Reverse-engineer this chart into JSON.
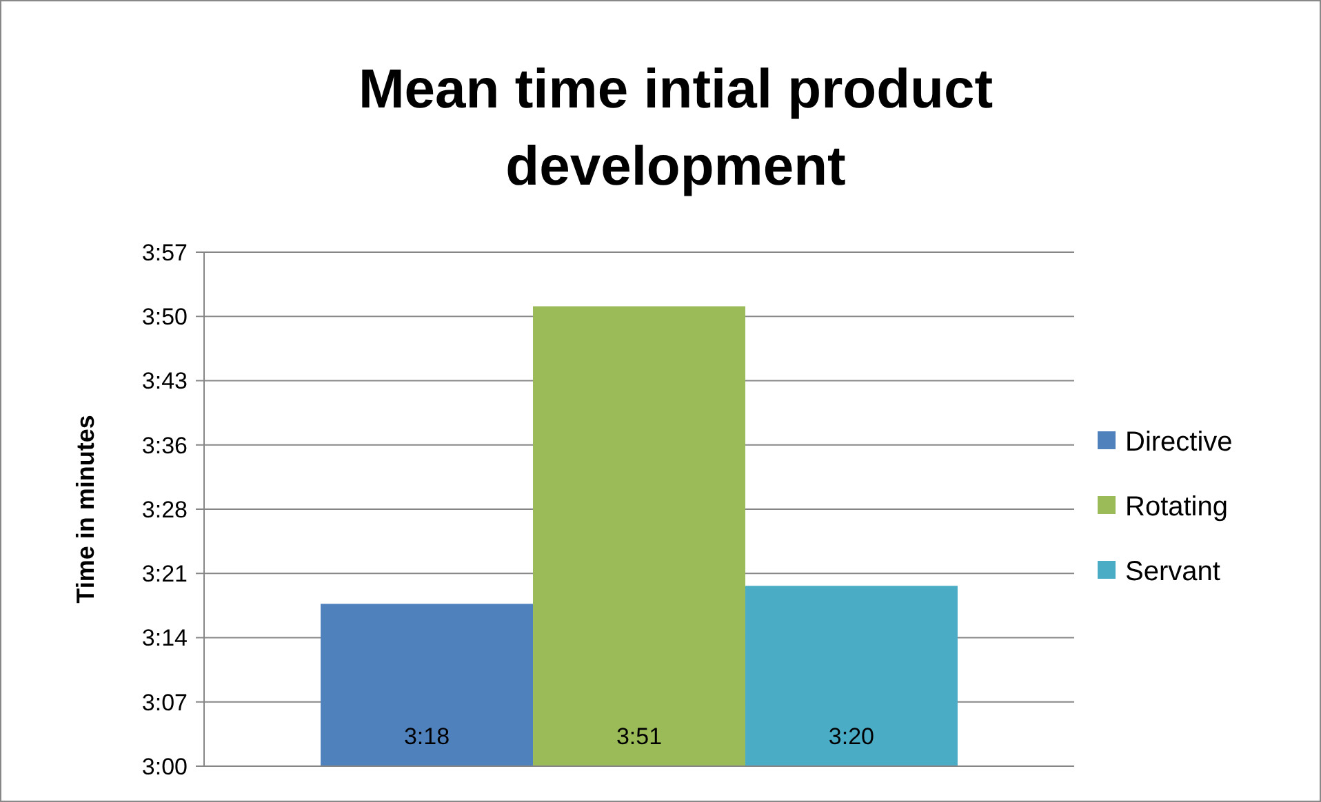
{
  "chart_data": {
    "type": "bar",
    "title": "Mean time intial product development",
    "ylabel": "Time in minutes",
    "categories": [
      null
    ],
    "series": [
      {
        "name": "Directive",
        "color": "#4f81bd",
        "values": [
          198
        ],
        "value_labels": [
          "3:18"
        ]
      },
      {
        "name": "Rotating",
        "color": "#9bbb59",
        "values": [
          231
        ],
        "value_labels": [
          "3:51"
        ]
      },
      {
        "name": "Servant",
        "color": "#4bacc6",
        "values": [
          200
        ],
        "value_labels": [
          "3:20"
        ]
      }
    ],
    "ylim": [
      180,
      237
    ],
    "yticks": [
      {
        "value": 180,
        "label": "3:00"
      },
      {
        "value": 187.125,
        "label": "3:07"
      },
      {
        "value": 194.25,
        "label": "3:14"
      },
      {
        "value": 201.375,
        "label": "3:21"
      },
      {
        "value": 208.5,
        "label": "3:28"
      },
      {
        "value": 215.625,
        "label": "3:36"
      },
      {
        "value": 222.75,
        "label": "3:43"
      },
      {
        "value": 229.875,
        "label": "3:50"
      },
      {
        "value": 237,
        "label": "3:57"
      }
    ],
    "grid": "y",
    "legend": "right"
  }
}
